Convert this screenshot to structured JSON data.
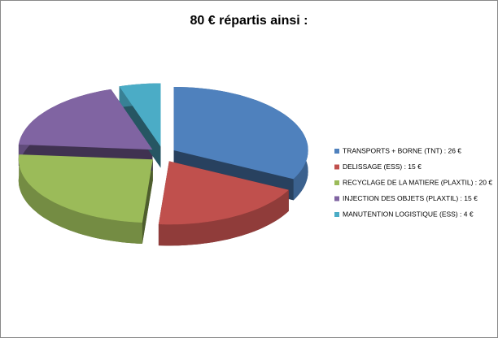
{
  "chart_data": {
    "type": "pie",
    "title": "80 € répartis ainsi :",
    "categories": [
      "TRANSPORTS + BORNE (TNT) : 26 €",
      "DELISSAGE  (ESS) : 15 €",
      "RECYCLAGE DE LA MATIERE  (PLAXTIL) : 20 €",
      "INJECTION DES OBJETS (PLAXTIL) : 15 €",
      "MANUTENTION LOGISTIQUE (ESS) : 4 €"
    ],
    "values": [
      26,
      15,
      20,
      15,
      4
    ],
    "colors": [
      "#4f81bd",
      "#c0504d",
      "#9bbb59",
      "#8064a2",
      "#4bacc6"
    ],
    "legend": "right"
  }
}
